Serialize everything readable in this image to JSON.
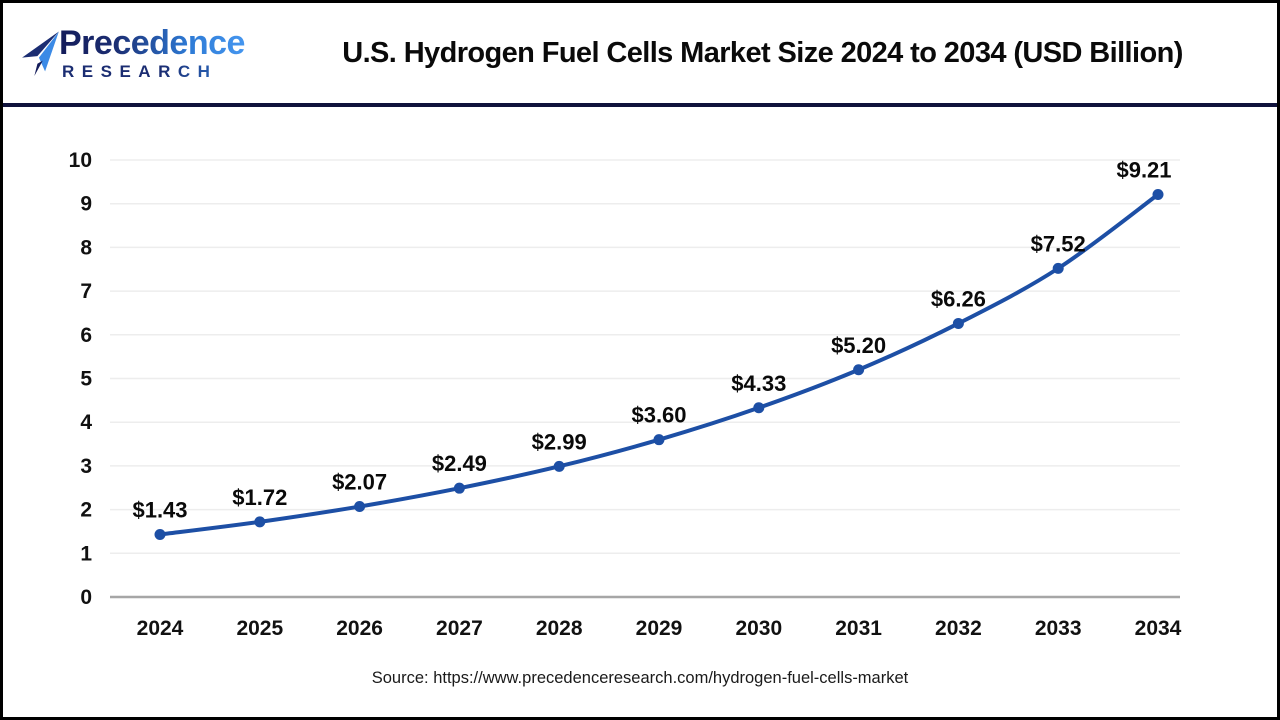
{
  "header": {
    "logo": {
      "line1": "Precedence",
      "line2": "RESEARCH"
    },
    "title": "U.S. Hydrogen Fuel Cells Market Size 2024 to 2034 (USD Billion)"
  },
  "chart_data": {
    "type": "line",
    "title": "U.S. Hydrogen Fuel Cells Market Size 2024 to 2034 (USD Billion)",
    "categories": [
      "2024",
      "2025",
      "2026",
      "2027",
      "2028",
      "2029",
      "2030",
      "2031",
      "2032",
      "2033",
      "2034"
    ],
    "values": [
      1.43,
      1.72,
      2.07,
      2.49,
      2.99,
      3.6,
      4.33,
      5.2,
      6.26,
      7.52,
      9.21
    ],
    "labels": [
      "$1.43",
      "$1.72",
      "$2.07",
      "$2.49",
      "$2.99",
      "$3.60",
      "$4.33",
      "$5.20",
      "$6.26",
      "$7.52",
      "$9.21"
    ],
    "xlabel": "",
    "ylabel": "",
    "ylim": [
      0,
      10
    ],
    "ytick_step": 1,
    "grid": true,
    "legend": false,
    "line_color": "#1d4fa5",
    "marker": "circle"
  },
  "footer": {
    "source": "Source: https://www.precedenceresearch.com/hydrogen-fuel-cells-market"
  },
  "colors": {
    "accent_navy": "#1b2d72",
    "accent_blue": "#2e7bd6",
    "header_rule": "#10123c",
    "grid": "#ededed",
    "axis": "#a6a6a6",
    "tick_text": "#111111"
  }
}
